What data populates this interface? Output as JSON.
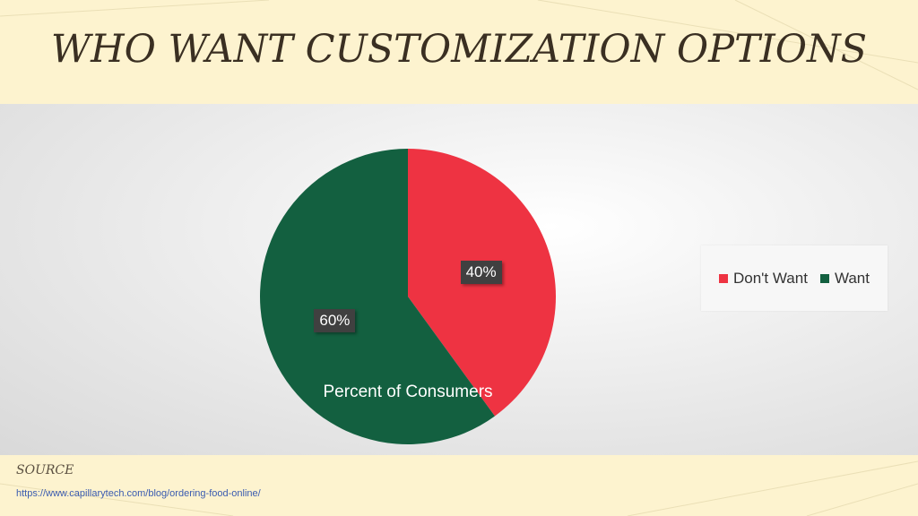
{
  "slide": {
    "title": "WHO WANT CUSTOMIZATION OPTIONS",
    "source_label": "SOURCE",
    "source_url": "https://www.capillarytech.com/blog/ordering-food-online/"
  },
  "chart_data": {
    "type": "pie",
    "series_name": "Percent of Consumers",
    "categories": [
      "Don't Want",
      "Want"
    ],
    "values": [
      40,
      60
    ],
    "data_labels": [
      "40%",
      "60%"
    ],
    "colors": [
      "#ee3342",
      "#136040"
    ],
    "legend": {
      "position": "right",
      "entries": [
        "Don't Want",
        "Want"
      ]
    }
  }
}
